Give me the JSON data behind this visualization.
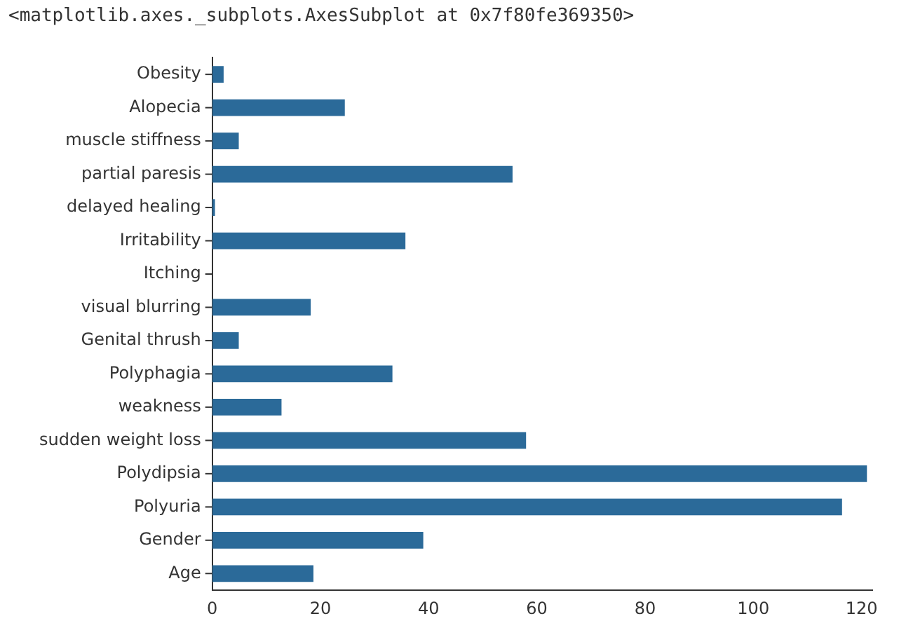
{
  "chart_data": {
    "type": "bar",
    "orientation": "horizontal",
    "annotations": [
      "<matplotlib.axes._subplots.AxesSubplot at 0x7f80fe369350>"
    ],
    "categories": [
      "Obesity",
      "Alopecia",
      "muscle stiffness",
      "partial paresis",
      "delayed healing",
      "Irritability",
      "Itching",
      "visual blurring",
      "Genital thrush",
      "Polyphagia",
      "weakness",
      "sudden weight loss",
      "Polydipsia",
      "Polyuria",
      "Gender",
      "Age"
    ],
    "values": [
      2.1,
      24.5,
      4.9,
      55.5,
      0.5,
      35.7,
      0,
      18.2,
      4.9,
      33.3,
      12.8,
      58,
      121,
      116.4,
      39,
      18.7
    ],
    "color": "#2b6a99",
    "xlim": [
      0,
      122
    ],
    "xticks": [
      0,
      20,
      40,
      60,
      80,
      100,
      120
    ],
    "grid": false,
    "legend": false
  }
}
